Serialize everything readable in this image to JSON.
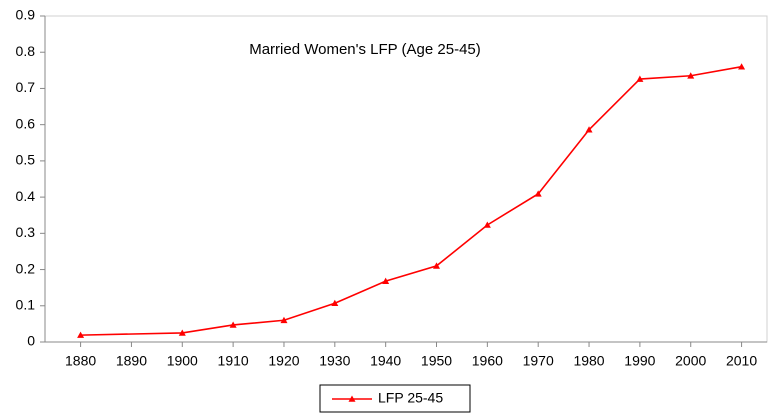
{
  "chart_data": {
    "type": "line",
    "title": "Married Women's LFP (Age 25-45)",
    "x": [
      1880,
      1900,
      1910,
      1920,
      1930,
      1940,
      1950,
      1960,
      1970,
      1980,
      1990,
      2000,
      2010
    ],
    "series": [
      {
        "name": "LFP 25-45",
        "color": "#ff0000",
        "values": [
          0.019,
          0.025,
          0.047,
          0.06,
          0.107,
          0.168,
          0.21,
          0.323,
          0.409,
          0.586,
          0.726,
          0.735,
          0.76
        ]
      }
    ],
    "xlim": [
      1873,
      2015
    ],
    "xticks": [
      1880,
      1890,
      1900,
      1910,
      1920,
      1930,
      1940,
      1950,
      1960,
      1970,
      1980,
      1990,
      2000,
      2010
    ],
    "ylim": [
      0,
      0.9
    ],
    "yticks": [
      0,
      0.1,
      0.2,
      0.3,
      0.4,
      0.5,
      0.6,
      0.7,
      0.8,
      0.9
    ],
    "legend": "bottom"
  }
}
